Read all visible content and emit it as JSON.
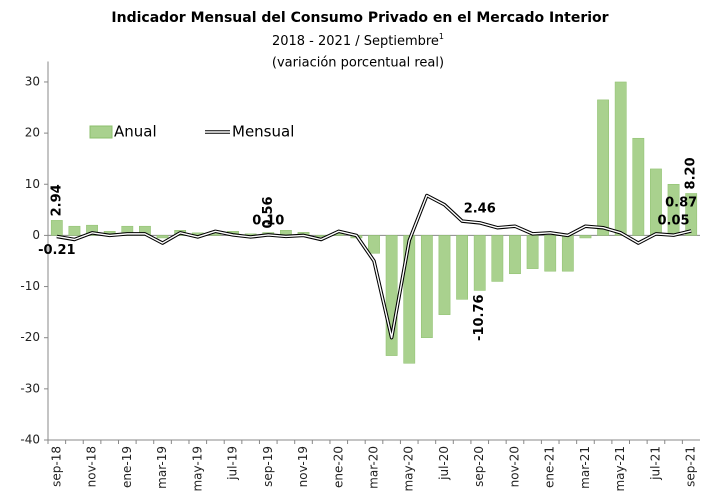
{
  "chart_data": {
    "type": "bar_line",
    "title": "Indicador Mensual del Consumo Privado en el Mercado Interior",
    "subtitle": "2018 - 2021 / Septiembre",
    "subtitle_note": "1",
    "subtitle2": "(variación porcentual real)",
    "categories": [
      "sep-18",
      null,
      "nov-18",
      null,
      "ene-19",
      null,
      "mar-19",
      null,
      "may-19",
      null,
      "jul-19",
      null,
      "sep-19",
      null,
      "nov-19",
      null,
      "ene-20",
      null,
      "mar-20",
      null,
      "may-20",
      null,
      "jul-20",
      null,
      "sep-20",
      null,
      "nov-20",
      null,
      "ene-21",
      null,
      "mar-21",
      null,
      "may-21",
      null,
      "jul-21",
      null,
      "sep-21"
    ],
    "series": [
      {
        "name": "Anual",
        "color": "#a9d18e",
        "label_color": "#70ad47",
        "values": [
          2.94,
          1.8,
          2.0,
          0.8,
          1.8,
          1.8,
          -0.5,
          1.0,
          0.5,
          0.8,
          0.8,
          0.3,
          0.56,
          1.0,
          0.6,
          -0.3,
          0.5,
          -0.5,
          -3.5,
          -23.5,
          -25,
          -20,
          -15.5,
          -12.5,
          -10.76,
          -9,
          -7.5,
          -6.5,
          -7,
          -7,
          -0.5,
          26.5,
          30,
          19,
          13,
          10,
          8.2
        ],
        "value_labels": [
          "2.94",
          null,
          null,
          null,
          null,
          null,
          null,
          null,
          null,
          null,
          null,
          null,
          "0.56",
          null,
          null,
          null,
          null,
          null,
          null,
          null,
          null,
          null,
          null,
          null,
          "-10.76",
          null,
          null,
          null,
          null,
          null,
          null,
          null,
          null,
          null,
          null,
          null,
          "8.20"
        ]
      },
      {
        "name": "Mensual",
        "color": "#000000",
        "label_color": "#000000",
        "values": [
          -0.21,
          -0.8,
          0.5,
          0,
          0.3,
          0.3,
          -1.5,
          0.5,
          -0.3,
          0.8,
          0.1,
          -0.3,
          0.1,
          -0.2,
          0,
          -0.8,
          0.8,
          0,
          -5,
          -20,
          -1,
          7.8,
          6,
          2.8,
          2.46,
          1.5,
          1.8,
          0.3,
          0.5,
          0,
          1.8,
          1.5,
          0.5,
          -1.5,
          0.3,
          0.05,
          0.87
        ],
        "value_labels": [
          "-0.21",
          null,
          null,
          null,
          null,
          null,
          null,
          null,
          null,
          null,
          null,
          null,
          "0.10",
          null,
          null,
          null,
          null,
          null,
          null,
          null,
          null,
          null,
          null,
          null,
          "2.46",
          null,
          null,
          null,
          null,
          null,
          null,
          null,
          null,
          null,
          null,
          "0.05",
          "0.87"
        ]
      }
    ],
    "ylim": [
      -40,
      34
    ],
    "yticks": [
      -40,
      -30,
      -20,
      -10,
      0,
      10,
      20,
      30
    ],
    "grid": false,
    "legend": "upper left"
  }
}
